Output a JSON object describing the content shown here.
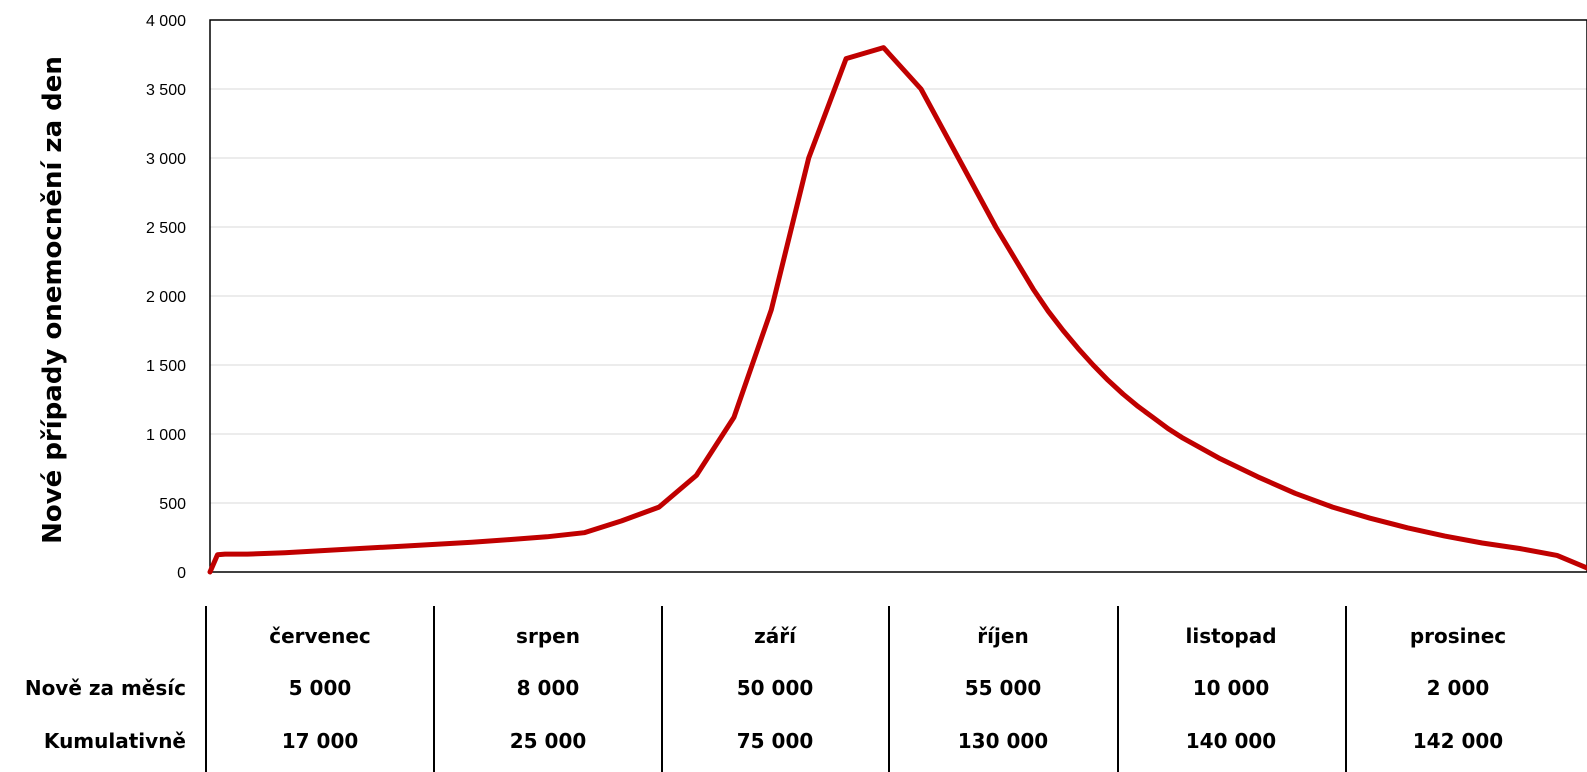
{
  "chart_data": {
    "type": "line",
    "title": "",
    "xlabel": "",
    "ylabel": "Nové případy onemocnění za den",
    "ylim": [
      0,
      4000
    ],
    "yticks": [
      0,
      500,
      1000,
      1500,
      2000,
      2500,
      3000,
      3500,
      4000
    ],
    "ytick_labels": [
      "0",
      "500",
      "1 000",
      "1 500",
      "2 000",
      "2 500",
      "3 000",
      "3 500",
      "4 000"
    ],
    "grid": true,
    "legend": "none",
    "color": "#c00000",
    "x_unit": "day index from start of červenec",
    "xlim": [
      0,
      184
    ],
    "series": [
      {
        "x": [
          0,
          1,
          2,
          5,
          10,
          15,
          20,
          25,
          30,
          35,
          40,
          45,
          50,
          55,
          60,
          65,
          70,
          75,
          80,
          85,
          90,
          95,
          100,
          105,
          110,
          112,
          114,
          116,
          118,
          120,
          122,
          124,
          126,
          128,
          130,
          135,
          140,
          145,
          150,
          155,
          160,
          165,
          170,
          175,
          180,
          184
        ],
        "values": [
          0,
          125,
          130,
          130,
          140,
          155,
          170,
          185,
          200,
          215,
          235,
          255,
          285,
          370,
          470,
          700,
          1120,
          1900,
          3000,
          3720,
          3800,
          3500,
          3000,
          2500,
          2050,
          1890,
          1750,
          1620,
          1500,
          1390,
          1290,
          1200,
          1120,
          1040,
          970,
          820,
          690,
          570,
          470,
          390,
          320,
          260,
          210,
          170,
          120,
          30
        ]
      }
    ]
  },
  "table": {
    "months": [
      "červenec",
      "srpen",
      "září",
      "říjen",
      "listopad",
      "prosinec"
    ],
    "rows": [
      {
        "label": "Nově za měsíc",
        "values": [
          "5 000",
          "8 000",
          "50 000",
          "55 000",
          "10 000",
          "2 000"
        ]
      },
      {
        "label": "Kumulativně",
        "values": [
          "17 000",
          "25 000",
          "75 000",
          "130 000",
          "140 000",
          "142 000"
        ]
      }
    ]
  }
}
